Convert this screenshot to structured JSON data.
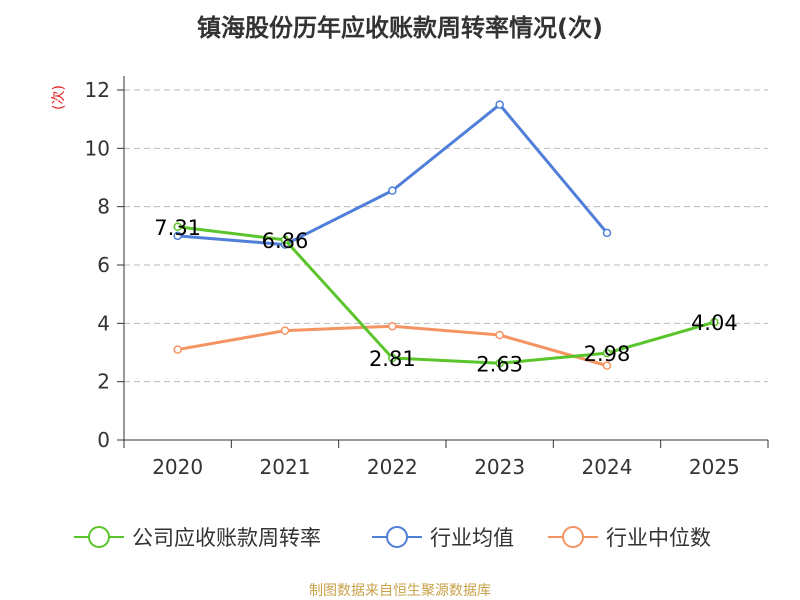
{
  "chart_data": {
    "type": "line",
    "title": "镇海股份历年应收账款周转率情况(次)",
    "ylabel": "(次)",
    "xlabel": "",
    "categories": [
      "2020",
      "2021",
      "2022",
      "2023",
      "2024",
      "2025"
    ],
    "ylim": [
      0,
      12
    ],
    "yticks": [
      0,
      2,
      4,
      6,
      8,
      10,
      12
    ],
    "grid": true,
    "legend_position": "bottom",
    "series": [
      {
        "name": "公司应收账款周转率",
        "color": "#5ac52a",
        "values": [
          7.31,
          6.86,
          2.81,
          2.63,
          2.98,
          4.04
        ],
        "labels": [
          "7.31",
          "6.86",
          "2.81",
          "2.63",
          "2.98",
          "4.04"
        ]
      },
      {
        "name": "行业均值",
        "color": "#4f7fd8",
        "values": [
          7.0,
          6.7,
          8.55,
          11.5,
          7.1,
          null
        ]
      },
      {
        "name": "行业中位数",
        "color": "#f59463",
        "values": [
          3.1,
          3.75,
          3.9,
          3.6,
          2.55,
          null
        ]
      }
    ]
  },
  "source": "制图数据来自恒生聚源数据库"
}
